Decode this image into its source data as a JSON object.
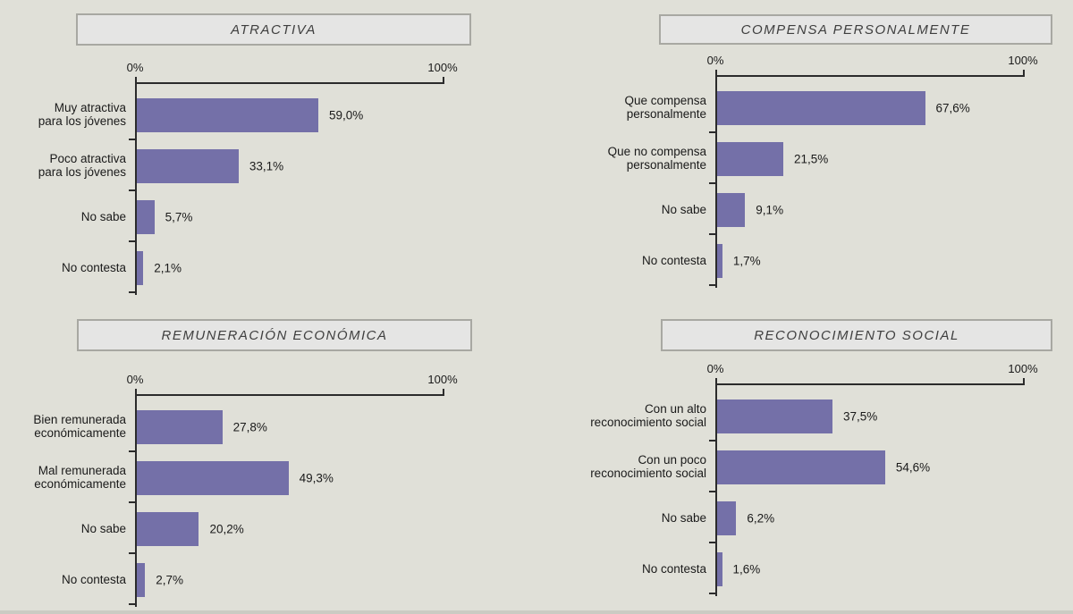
{
  "colors": {
    "background": "#E0E0D8",
    "bar": "#7470A8",
    "axis": "#2B2B2B",
    "text": "#1A1A1A",
    "title_text": "#3F3F3F",
    "title_box_bg": "#E5E5E4",
    "title_box_border": "#A8A8A2",
    "bottom_strip": "#CBCBC3"
  },
  "chart_data": [
    {
      "type": "bar",
      "orientation": "horizontal",
      "title": "ATRACTIVA",
      "categories": [
        "Muy atractiva\npara los jóvenes",
        "Poco atractiva\npara los jóvenes",
        "No sabe",
        "No contesta"
      ],
      "values": [
        59.0,
        33.1,
        5.7,
        2.1
      ],
      "value_labels": [
        "59,0%",
        "33,1%",
        "5,7%",
        "2,1%"
      ],
      "xlim": [
        0,
        100
      ],
      "axis_tick_labels": [
        "0%",
        "100%"
      ],
      "grid": false,
      "legend": false
    },
    {
      "type": "bar",
      "orientation": "horizontal",
      "title": "COMPENSA PERSONALMENTE",
      "categories": [
        "Que compensa\npersonalmente",
        "Que no compensa\npersonalmente",
        "No sabe",
        "No contesta"
      ],
      "values": [
        67.6,
        21.5,
        9.1,
        1.7
      ],
      "value_labels": [
        "67,6%",
        "21,5%",
        "9,1%",
        "1,7%"
      ],
      "xlim": [
        0,
        100
      ],
      "axis_tick_labels": [
        "0%",
        "100%"
      ],
      "grid": false,
      "legend": false
    },
    {
      "type": "bar",
      "orientation": "horizontal",
      "title": "REMUNERACIÓN ECONÓMICA",
      "categories": [
        "Bien remunerada\neconómicamente",
        "Mal remunerada\neconómicamente",
        "No sabe",
        "No contesta"
      ],
      "values": [
        27.8,
        49.3,
        20.2,
        2.7
      ],
      "value_labels": [
        "27,8%",
        "49,3%",
        "20,2%",
        "2,7%"
      ],
      "xlim": [
        0,
        100
      ],
      "axis_tick_labels": [
        "0%",
        "100%"
      ],
      "grid": false,
      "legend": false
    },
    {
      "type": "bar",
      "orientation": "horizontal",
      "title": "RECONOCIMIENTO SOCIAL",
      "categories": [
        "Con un alto\nreconocimiento social",
        "Con un poco\nreconocimiento social",
        "No sabe",
        "No contesta"
      ],
      "values": [
        37.5,
        54.6,
        6.2,
        1.6
      ],
      "value_labels": [
        "37,5%",
        "54,6%",
        "6,2%",
        "1,6%"
      ],
      "xlim": [
        0,
        100
      ],
      "axis_tick_labels": [
        "0%",
        "100%"
      ],
      "grid": false,
      "legend": false
    }
  ]
}
